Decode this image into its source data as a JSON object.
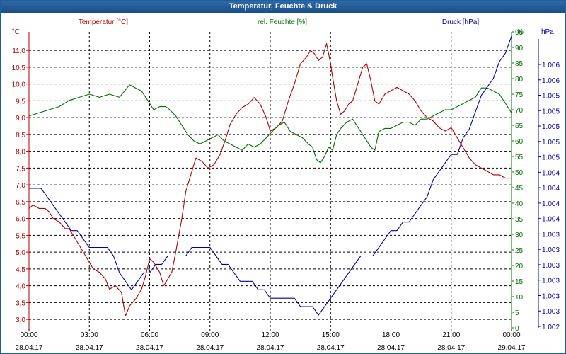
{
  "window": {
    "title": "Temperatur, Feuchte & Druck"
  },
  "colors": {
    "temperature": "#b00000",
    "humidity": "#007000",
    "pressure": "#0000a0",
    "grid": "#000000",
    "axis_text": "#000000"
  },
  "chart_data": {
    "type": "line",
    "title": "Temperatur, Feuchte & Druck",
    "grid": true,
    "legend_placement": "top",
    "x_ticks": [
      {
        "time": "00:00",
        "date": "28.04.17"
      },
      {
        "time": "03:00",
        "date": "28.04.17"
      },
      {
        "time": "06:00",
        "date": "28.04.17"
      },
      {
        "time": "09:00",
        "date": "28.04.17"
      },
      {
        "time": "12:00",
        "date": "28.04.17"
      },
      {
        "time": "15:00",
        "date": "28.04.17"
      },
      {
        "time": "18:00",
        "date": "28.04.17"
      },
      {
        "time": "21:00",
        "date": "28.04.17"
      },
      {
        "time": "00:00",
        "date": "29.04.17"
      }
    ],
    "xlim": [
      0,
      24
    ],
    "axes": {
      "temperature": {
        "unit": "°C",
        "ylim": [
          2.75,
          11.55
        ],
        "ticks": [
          3.0,
          3.5,
          4.0,
          4.5,
          5.0,
          5.5,
          6.0,
          6.5,
          7.0,
          7.5,
          8.0,
          8.5,
          9.0,
          9.5,
          10.0,
          10.5,
          11.0
        ],
        "tick_labels": [
          "3,0",
          "3,5",
          "4,0",
          "4,5",
          "5,0",
          "5,5",
          "6,0",
          "6,5",
          "7,0",
          "7,5",
          "8,0",
          "8,5",
          "9,0",
          "9,5",
          "10,0",
          "10,5",
          "11,0"
        ]
      },
      "humidity": {
        "unit": "%",
        "ylim": [
          0,
          95
        ],
        "ticks": [
          0,
          5,
          10,
          15,
          20,
          25,
          30,
          35,
          40,
          45,
          50,
          55,
          60,
          65,
          70,
          75,
          80,
          85,
          90,
          95
        ],
        "tick_labels": [
          "0",
          "5",
          "10",
          "15",
          "20",
          "25",
          "30",
          "35",
          "40",
          "45",
          "50",
          "55",
          "60",
          "65",
          "70",
          "75",
          "80",
          "85",
          "90",
          "95"
        ]
      },
      "pressure": {
        "unit": "hPa",
        "tick_labels": [
          "1.002",
          "1.003",
          "1.003",
          "1.003",
          "1.003",
          "1.003",
          "1.003",
          "1.004",
          "1.004",
          "1.004",
          "1.004",
          "1.005",
          "1.005",
          "1.005",
          "1.005",
          "1.005",
          "1.006",
          "1.006"
        ]
      }
    },
    "series": [
      {
        "name": "Temperatur [°C]",
        "axis": "temperature",
        "x": [
          0,
          0.2,
          0.5,
          0.8,
          1.0,
          1.2,
          1.5,
          1.8,
          2.0,
          2.3,
          2.6,
          2.9,
          3.2,
          3.5,
          3.8,
          4.0,
          4.3,
          4.6,
          4.8,
          5.0,
          5.3,
          5.6,
          5.8,
          6.0,
          6.2,
          6.5,
          6.7,
          6.9,
          7.1,
          7.3,
          7.6,
          7.8,
          8.0,
          8.3,
          8.6,
          8.9,
          9.2,
          9.5,
          9.8,
          10.0,
          10.3,
          10.6,
          10.9,
          11.2,
          11.5,
          11.8,
          12.0,
          12.3,
          12.6,
          12.9,
          13.2,
          13.5,
          13.8,
          14.0,
          14.2,
          14.4,
          14.6,
          14.8,
          15.0,
          15.1,
          15.3,
          15.5,
          15.7,
          15.9,
          16.1,
          16.3,
          16.6,
          16.8,
          17.0,
          17.2,
          17.4,
          17.7,
          18.0,
          18.3,
          18.6,
          18.9,
          19.2,
          19.5,
          19.8,
          20.1,
          20.4,
          20.7,
          21.0,
          21.3,
          21.6,
          21.9,
          22.2,
          22.5,
          22.8,
          23.1,
          23.4,
          23.7,
          24.0
        ],
        "values": [
          6.3,
          6.4,
          6.3,
          6.3,
          6.2,
          6.0,
          5.9,
          5.7,
          5.7,
          5.4,
          5.1,
          4.8,
          4.5,
          4.4,
          4.2,
          3.9,
          4.0,
          3.8,
          3.1,
          3.4,
          3.6,
          3.9,
          4.3,
          4.8,
          4.7,
          4.4,
          4.0,
          4.2,
          4.4,
          5.0,
          6.0,
          6.8,
          7.2,
          7.8,
          7.7,
          7.5,
          7.6,
          7.9,
          8.4,
          8.8,
          9.1,
          9.3,
          9.4,
          9.6,
          9.4,
          9.0,
          8.6,
          8.7,
          8.9,
          9.5,
          10.0,
          10.6,
          10.8,
          11.0,
          10.9,
          10.7,
          10.8,
          11.2,
          10.6,
          10.2,
          9.5,
          9.1,
          9.2,
          9.4,
          9.5,
          9.9,
          10.5,
          10.6,
          10.1,
          9.5,
          9.4,
          9.7,
          9.8,
          9.9,
          9.8,
          9.7,
          9.5,
          9.2,
          9.0,
          8.9,
          8.7,
          8.6,
          8.7,
          8.4,
          8.1,
          7.8,
          7.6,
          7.5,
          7.4,
          7.3,
          7.3,
          7.2,
          7.2
        ]
      },
      {
        "name": "rel. Feuchte [%]",
        "axis": "humidity",
        "x": [
          0,
          0.5,
          1.0,
          1.5,
          2.0,
          2.5,
          3.0,
          3.5,
          4.0,
          4.5,
          5.0,
          5.3,
          5.6,
          5.9,
          6.2,
          6.5,
          6.8,
          7.0,
          7.3,
          7.6,
          7.9,
          8.2,
          8.5,
          8.8,
          9.1,
          9.4,
          9.7,
          10.0,
          10.3,
          10.6,
          10.9,
          11.2,
          11.5,
          11.8,
          12.1,
          12.4,
          12.7,
          13.0,
          13.3,
          13.6,
          13.9,
          14.1,
          14.3,
          14.5,
          14.7,
          14.9,
          15.1,
          15.3,
          15.5,
          15.8,
          16.1,
          16.4,
          16.7,
          17.0,
          17.2,
          17.4,
          17.7,
          18.0,
          18.3,
          18.6,
          18.9,
          19.2,
          19.5,
          19.8,
          20.1,
          20.4,
          20.7,
          21.0,
          21.3,
          21.6,
          21.9,
          22.2,
          22.5,
          22.8,
          23.1,
          23.4,
          23.7,
          24.0
        ],
        "values": [
          68,
          69,
          70,
          71,
          73,
          74,
          75,
          74,
          75,
          74,
          78,
          77,
          76,
          73,
          70,
          71,
          71,
          70,
          68,
          65,
          62,
          60,
          59,
          60,
          61,
          62,
          60,
          59,
          58,
          57,
          59,
          58,
          59,
          61,
          63,
          65,
          66,
          63,
          62,
          61,
          59,
          58,
          54,
          53,
          55,
          58,
          57,
          62,
          64,
          66,
          67,
          64,
          61,
          58,
          57,
          63,
          64,
          64,
          65,
          66,
          66,
          65,
          67,
          67,
          68,
          69,
          70,
          70,
          71,
          72,
          73,
          74,
          77,
          77,
          76,
          75,
          72,
          69
        ]
      },
      {
        "name": "Druck [hPa]",
        "axis": "pressure",
        "x": [
          0,
          0.3,
          0.6,
          0.9,
          1.2,
          1.5,
          1.8,
          2.1,
          2.4,
          2.7,
          3.0,
          3.3,
          3.6,
          3.9,
          4.2,
          4.5,
          4.8,
          5.1,
          5.4,
          5.7,
          6.0,
          6.3,
          6.6,
          6.9,
          7.2,
          7.5,
          7.8,
          8.1,
          8.4,
          8.7,
          9.0,
          9.3,
          9.6,
          9.9,
          10.2,
          10.5,
          10.8,
          11.1,
          11.4,
          11.7,
          12.0,
          12.3,
          12.6,
          12.9,
          13.2,
          13.5,
          13.8,
          14.1,
          14.4,
          14.7,
          15.0,
          15.3,
          15.6,
          15.9,
          16.2,
          16.5,
          16.8,
          17.1,
          17.4,
          17.7,
          18.0,
          18.3,
          18.6,
          18.9,
          19.2,
          19.5,
          19.8,
          20.1,
          20.4,
          20.7,
          21.0,
          21.3,
          21.6,
          21.9,
          22.2,
          22.5,
          22.8,
          23.1,
          23.4,
          23.7,
          24.0
        ],
        "values": [
          1.0039,
          1.0039,
          1.0039,
          1.0038,
          1.0037,
          1.0036,
          1.0035,
          1.0034,
          1.0034,
          1.0033,
          1.0032,
          1.0032,
          1.0032,
          1.0032,
          1.0031,
          1.0029,
          1.0028,
          1.0027,
          1.0028,
          1.0029,
          1.0029,
          1.003,
          1.003,
          1.0031,
          1.0031,
          1.0031,
          1.0031,
          1.0032,
          1.0032,
          1.0032,
          1.0032,
          1.0031,
          1.003,
          1.003,
          1.0029,
          1.0028,
          1.0028,
          1.0028,
          1.0027,
          1.0027,
          1.0026,
          1.0026,
          1.0026,
          1.0026,
          1.0026,
          1.0025,
          1.0025,
          1.0025,
          1.0024,
          1.0025,
          1.0026,
          1.0027,
          1.0028,
          1.0029,
          1.003,
          1.0031,
          1.0031,
          1.0031,
          1.0032,
          1.0033,
          1.0034,
          1.0034,
          1.0035,
          1.0035,
          1.0036,
          1.0037,
          1.0038,
          1.004,
          1.0041,
          1.0042,
          1.0043,
          1.0043,
          1.0045,
          1.0046,
          1.0048,
          1.005,
          1.0051,
          1.0052,
          1.0054,
          1.0055,
          1.0057
        ]
      }
    ]
  }
}
